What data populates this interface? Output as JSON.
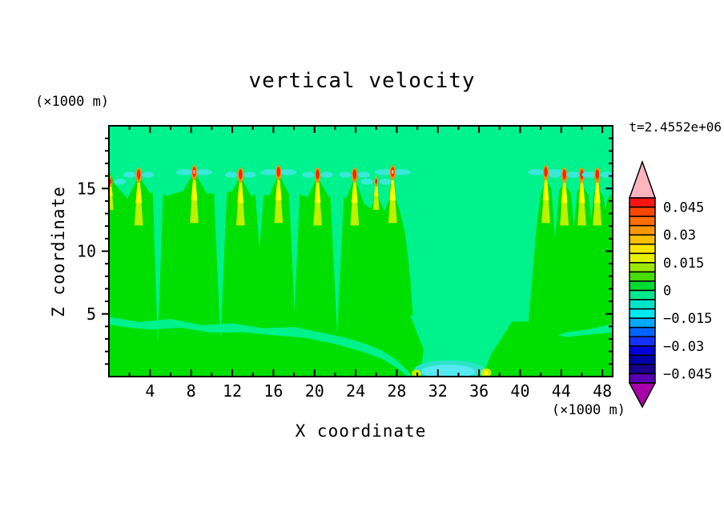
{
  "title": "vertical velocity",
  "time_label": "t=2.4552e+06",
  "axes": {
    "x": {
      "label": "X coordinate",
      "unit": "(×1000 m)",
      "range": [
        0,
        49
      ],
      "major_ticks": [
        4,
        8,
        12,
        16,
        20,
        24,
        28,
        32,
        36,
        40,
        44,
        48
      ],
      "minor_step": 2
    },
    "y": {
      "label": "Z coordinate",
      "unit": "(×1000 m)",
      "range": [
        0,
        20
      ],
      "major_ticks": [
        5,
        10,
        15
      ],
      "minor_step": 1
    }
  },
  "colorbar": {
    "labels": [
      "0.045",
      "0.03",
      "0.015",
      "0",
      "−0.015",
      "−0.03",
      "−0.045"
    ],
    "label_boundaries": [
      1,
      4,
      7,
      10,
      13,
      16,
      19
    ],
    "cell_values_top_to_bottom": [
      0.05,
      0.045,
      0.04,
      0.035,
      0.03,
      0.025,
      0.02,
      0.015,
      0.01,
      0.005,
      0,
      -0.005,
      -0.01,
      -0.015,
      -0.02,
      -0.025,
      -0.03,
      -0.035,
      -0.04,
      -0.045
    ],
    "cell_colors": [
      "#FF1414",
      "#FF4600",
      "#FF6E00",
      "#FF9600",
      "#FFBE00",
      "#FFE600",
      "#E6F000",
      "#9BE800",
      "#46DC00",
      "#00DC32",
      "#00E88C",
      "#00E4C8",
      "#00E8F0",
      "#00AAFF",
      "#0064FF",
      "#1432FF",
      "#0000DC",
      "#0000AA",
      "#16008C",
      "#5A00B4"
    ],
    "over_color": "#FFB4BE",
    "under_color": "#AA00AA"
  },
  "chart_data": {
    "type": "heatmap",
    "description": "Filled contour plot of vertical velocity (m/s) in an X-Z atmospheric cross-section; spring-green background ~0, green updraft plumes with yellow/orange/red cores near z=16, cyan downdraft patch at the surface near x=33.",
    "title": "vertical velocity",
    "xlabel": "X coordinate (×1000 m)",
    "ylabel": "Z coordinate (×1000 m)",
    "xlim": [
      0,
      49
    ],
    "ylim": [
      0,
      20
    ],
    "time": "t=2.4552e+06",
    "contour_interval": 0.005,
    "levels_labeled": [
      0.045,
      0.03,
      0.015,
      0,
      -0.015,
      -0.03,
      -0.045
    ],
    "palette": {
      "bg": "#00F28C",
      "plume": "#00E000",
      "spring": "#00F28C",
      "yg": "#BFF000",
      "yellow": "#FFFF00",
      "orange": "#FF9100",
      "red": "#FF2000",
      "pink": "#FFB4C8",
      "wing": "#38E8D8",
      "cyan": "#55EAF2",
      "turquoise": "#2BE4C8",
      "speck": "#C8F000"
    },
    "regions": [
      {
        "name": "updraft-mass-left",
        "fill": "plume",
        "pts": [
          [
            0,
            16.5
          ],
          [
            0.6,
            15.3
          ],
          [
            1.8,
            14.2
          ],
          [
            2.9,
            16.0
          ],
          [
            4.0,
            14.6
          ],
          [
            4.7,
            14.9
          ],
          [
            5.6,
            14.4
          ],
          [
            7.2,
            14.8
          ],
          [
            8.3,
            16.3
          ],
          [
            9.5,
            14.6
          ],
          [
            10.8,
            14.6
          ],
          [
            12.0,
            14.8
          ],
          [
            12.8,
            16.0
          ],
          [
            13.8,
            14.4
          ],
          [
            14.6,
            14.6
          ],
          [
            15.6,
            14.4
          ],
          [
            16.5,
            16.2
          ],
          [
            17.6,
            14.4
          ],
          [
            18.2,
            14.7
          ],
          [
            19.3,
            14.3
          ],
          [
            20.3,
            15.9
          ],
          [
            21.4,
            14.3
          ],
          [
            22.2,
            14.6
          ],
          [
            23.1,
            14.2
          ],
          [
            23.9,
            15.9
          ],
          [
            24.8,
            13.8
          ],
          [
            25.5,
            13.4
          ],
          [
            26.0,
            14.6
          ],
          [
            26.8,
            13.2
          ],
          [
            27.6,
            14.8
          ],
          [
            28.2,
            13.5
          ],
          [
            28.8,
            11.5
          ],
          [
            29.3,
            8.0
          ],
          [
            29.6,
            4.5
          ],
          [
            29.9,
            0
          ],
          [
            0,
            0
          ]
        ]
      },
      {
        "name": "surface-band-mid",
        "fill": "plume",
        "pts": [
          [
            29.5,
            0
          ],
          [
            29.2,
            3.0
          ],
          [
            29.6,
            4.3
          ],
          [
            41.2,
            4.4
          ],
          [
            41.0,
            0
          ]
        ]
      },
      {
        "name": "updraft-mass-right",
        "fill": "plume",
        "pts": [
          [
            40.7,
            0
          ],
          [
            40.8,
            4.4
          ],
          [
            41.2,
            8.0
          ],
          [
            41.6,
            12.0
          ],
          [
            42.0,
            14.5
          ],
          [
            42.5,
            15.7
          ],
          [
            43.4,
            14.5
          ],
          [
            44.3,
            15.4
          ],
          [
            45.2,
            14.3
          ],
          [
            46.0,
            15.3
          ],
          [
            46.9,
            14.2
          ],
          [
            47.5,
            15.2
          ],
          [
            48.3,
            14.0
          ],
          [
            49,
            14.6
          ],
          [
            49,
            0
          ]
        ]
      },
      {
        "name": "near-zero-band-left",
        "fill": "spring",
        "pts": [
          [
            0,
            4.75
          ],
          [
            3,
            4.35
          ],
          [
            6,
            4.6
          ],
          [
            9,
            4.1
          ],
          [
            12,
            4.25
          ],
          [
            15,
            3.85
          ],
          [
            18,
            3.95
          ],
          [
            21,
            3.45
          ],
          [
            23,
            3.1
          ],
          [
            25,
            2.6
          ],
          [
            26.5,
            2.1
          ],
          [
            28,
            1.3
          ],
          [
            29,
            0.5
          ],
          [
            29.4,
            0.1
          ],
          [
            29.0,
            0
          ],
          [
            28.2,
            0.6
          ],
          [
            26.6,
            1.4
          ],
          [
            24.6,
            2.0
          ],
          [
            22,
            2.6
          ],
          [
            19,
            3.1
          ],
          [
            16,
            3.3
          ],
          [
            13,
            3.55
          ],
          [
            10,
            3.5
          ],
          [
            7,
            3.9
          ],
          [
            4,
            3.75
          ],
          [
            1.5,
            3.95
          ],
          [
            0,
            4.15
          ]
        ]
      },
      {
        "name": "downdraft-descent",
        "fill": "spring",
        "pts": [
          [
            29.3,
            4.9
          ],
          [
            30.6,
            2.2
          ],
          [
            30.3,
            0
          ],
          [
            36.3,
            0
          ],
          [
            37.2,
            1.8
          ],
          [
            38.6,
            3.6
          ],
          [
            39.6,
            4.9
          ]
        ]
      },
      {
        "name": "near-zero-band-right",
        "fill": "spring",
        "pts": [
          [
            49,
            4.2
          ],
          [
            46.5,
            3.75
          ],
          [
            44.6,
            3.55
          ],
          [
            43.7,
            3.3
          ],
          [
            44.6,
            3.15
          ],
          [
            46.5,
            3.35
          ],
          [
            49,
            3.5
          ]
        ]
      },
      {
        "name": "valley",
        "fill": "spring",
        "pts": [
          [
            4.25,
            15.3
          ],
          [
            5.3,
            15.3
          ],
          [
            4.75,
            2.6
          ]
        ]
      },
      {
        "name": "valley",
        "fill": "spring",
        "pts": [
          [
            10.2,
            15.1
          ],
          [
            11.5,
            15.1
          ],
          [
            10.85,
            3.0
          ]
        ]
      },
      {
        "name": "valley",
        "fill": "spring",
        "pts": [
          [
            14.2,
            14.9
          ],
          [
            15.1,
            14.9
          ],
          [
            14.65,
            10.3
          ]
        ]
      },
      {
        "name": "valley",
        "fill": "spring",
        "pts": [
          [
            17.5,
            15.1
          ],
          [
            18.6,
            15.1
          ],
          [
            18.05,
            5.2
          ]
        ]
      },
      {
        "name": "valley",
        "fill": "spring",
        "pts": [
          [
            21.5,
            15.1
          ],
          [
            22.9,
            15.1
          ],
          [
            22.2,
            3.4
          ]
        ]
      },
      {
        "name": "valley",
        "fill": "spring",
        "pts": [
          [
            43.0,
            15.4
          ],
          [
            43.85,
            15.4
          ],
          [
            43.4,
            11.0
          ]
        ]
      },
      {
        "name": "valley",
        "fill": "spring",
        "pts": [
          [
            44.85,
            15.2
          ],
          [
            45.6,
            15.2
          ],
          [
            45.25,
            12.0
          ]
        ]
      },
      {
        "name": "valley",
        "fill": "spring",
        "pts": [
          [
            46.55,
            15.2
          ],
          [
            47.25,
            15.2
          ],
          [
            46.9,
            12.5
          ]
        ]
      },
      {
        "name": "valley",
        "fill": "spring",
        "pts": [
          [
            48.0,
            14.8
          ],
          [
            48.6,
            14.9
          ],
          [
            48.3,
            13.2
          ]
        ]
      }
    ],
    "surface_downdraft": {
      "rim": {
        "cx": 33.1,
        "cz": 0.55,
        "rx": 3.4,
        "rz": 0.75,
        "fill": "turquoise"
      },
      "core": {
        "cx": 33.0,
        "cz": 0.4,
        "rx": 2.6,
        "rz": 0.55,
        "fill": "cyan"
      },
      "specks": [
        {
          "cx": 29.9,
          "cz": 0.25,
          "rx": 0.45,
          "rz": 0.3,
          "fill": "speck"
        },
        {
          "cx": 36.7,
          "cz": 0.3,
          "rx": 0.5,
          "rz": 0.35,
          "fill": "speck"
        },
        {
          "cx": 36.7,
          "cz": 0.3,
          "rx": 0.22,
          "rz": 0.18,
          "fill": "yellow"
        }
      ]
    },
    "plumes": [
      {
        "x": 0.15,
        "strength": 0,
        "pink": false
      },
      {
        "x": 2.9,
        "strength": 1,
        "pink": false
      },
      {
        "x": 8.3,
        "strength": 2,
        "pink": true
      },
      {
        "x": 12.8,
        "strength": 1,
        "pink": false
      },
      {
        "x": 16.5,
        "strength": 2,
        "pink": false
      },
      {
        "x": 20.3,
        "strength": 1,
        "pink": false
      },
      {
        "x": 23.9,
        "strength": 1,
        "pink": false
      },
      {
        "x": 26.0,
        "strength": 0,
        "pink": false
      },
      {
        "x": 27.6,
        "strength": 2,
        "pink": true
      },
      {
        "x": 42.5,
        "strength": 2,
        "pink": false
      },
      {
        "x": 44.3,
        "strength": 1,
        "pink": false
      },
      {
        "x": 46.0,
        "strength": 1,
        "pink": false
      },
      {
        "x": 47.5,
        "strength": 1,
        "pink": false
      }
    ]
  }
}
